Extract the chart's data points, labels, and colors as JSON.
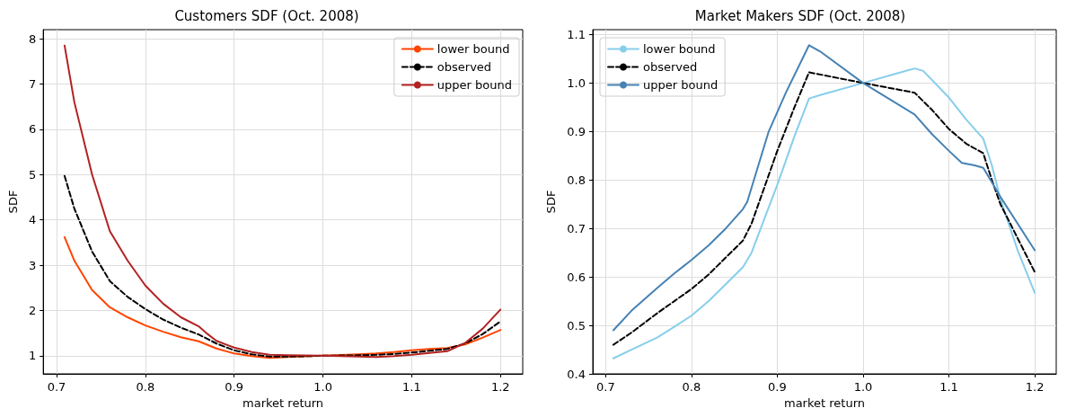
{
  "chart_data": [
    {
      "type": "line",
      "title": "Customers SDF (Oct. 2008)",
      "xlabel": "market return",
      "ylabel": "SDF",
      "grid": true,
      "legend": "top right",
      "marker": "none",
      "xlim": [
        0.685,
        1.225
      ],
      "xticks": [
        0.7,
        0.8,
        0.9,
        {
          "value": 1.0,
          "label": "1.0"
        },
        1.1,
        1.2
      ],
      "ylim": [
        0.6,
        8.2
      ],
      "yticks": [
        1,
        2,
        3,
        4,
        5,
        6,
        7,
        8
      ],
      "series": [
        {
          "name": "lower bound",
          "color": "#ff4500",
          "line_style": "solid",
          "x": [
            0.709,
            0.72,
            0.74,
            0.76,
            0.78,
            0.8,
            0.82,
            0.84,
            0.86,
            0.88,
            0.9,
            0.92,
            0.94,
            0.96,
            1.0,
            1.04,
            1.06,
            1.08,
            1.1,
            1.12,
            1.14,
            1.16,
            1.18,
            1.2
          ],
          "values": [
            3.62,
            3.1,
            2.45,
            2.07,
            1.85,
            1.67,
            1.53,
            1.41,
            1.32,
            1.16,
            1.05,
            0.99,
            0.95,
            0.97,
            1.0,
            1.03,
            1.05,
            1.08,
            1.12,
            1.15,
            1.17,
            1.25,
            1.4,
            1.57
          ]
        },
        {
          "name": "observed",
          "color": "#000000",
          "line_style": "dashed",
          "x": [
            0.709,
            0.72,
            0.74,
            0.76,
            0.78,
            0.8,
            0.82,
            0.84,
            0.86,
            0.88,
            0.9,
            0.92,
            0.94,
            0.96,
            1.0,
            1.04,
            1.06,
            1.08,
            1.1,
            1.12,
            1.14,
            1.16,
            1.18,
            1.2
          ],
          "values": [
            4.97,
            4.25,
            3.3,
            2.65,
            2.3,
            2.03,
            1.8,
            1.62,
            1.47,
            1.27,
            1.12,
            1.03,
            0.98,
            0.98,
            1.0,
            1.01,
            1.02,
            1.04,
            1.07,
            1.11,
            1.15,
            1.27,
            1.48,
            1.76
          ]
        },
        {
          "name": "upper bound",
          "color": "#b22222",
          "line_style": "solid",
          "x": [
            0.709,
            0.72,
            0.74,
            0.76,
            0.78,
            0.8,
            0.82,
            0.84,
            0.86,
            0.87,
            0.88,
            0.9,
            0.92,
            0.94,
            0.96,
            1.0,
            1.04,
            1.06,
            1.08,
            1.1,
            1.12,
            1.14,
            1.16,
            1.18,
            1.2
          ],
          "values": [
            7.85,
            6.6,
            5.0,
            3.75,
            3.1,
            2.55,
            2.15,
            1.85,
            1.65,
            1.48,
            1.33,
            1.18,
            1.08,
            1.02,
            1.01,
            1.0,
            0.98,
            0.97,
            0.99,
            1.02,
            1.06,
            1.1,
            1.28,
            1.6,
            2.02
          ]
        }
      ]
    },
    {
      "type": "line",
      "title": "Market Makers SDF (Oct. 2008)",
      "xlabel": "market return",
      "ylabel": "SDF",
      "grid": true,
      "legend": "top left",
      "marker": "none",
      "xlim": [
        0.685,
        1.225
      ],
      "xticks": [
        0.7,
        0.8,
        0.9,
        {
          "value": 1.0,
          "label": "1.0"
        },
        1.1,
        1.2
      ],
      "ylim": [
        0.4,
        1.11
      ],
      "yticks": [
        0.4,
        0.5,
        0.6,
        0.7,
        0.8,
        0.9,
        {
          "value": 1.0,
          "label": "1.0"
        },
        1.1
      ],
      "series": [
        {
          "name": "lower bound",
          "color": "#87ceeb",
          "line_style": "solid",
          "x": [
            0.709,
            0.73,
            0.76,
            0.78,
            0.8,
            0.82,
            0.84,
            0.86,
            0.87,
            0.9,
            0.92,
            0.937,
            0.95,
            1.0,
            1.04,
            1.06,
            1.07,
            1.1,
            1.12,
            1.14,
            1.15,
            1.16,
            1.18,
            1.2
          ],
          "values": [
            0.432,
            0.45,
            0.475,
            0.497,
            0.52,
            0.55,
            0.585,
            0.62,
            0.65,
            0.79,
            0.89,
            0.968,
            0.975,
            1.0,
            1.02,
            1.03,
            1.025,
            0.97,
            0.925,
            0.885,
            0.83,
            0.76,
            0.655,
            0.567
          ]
        },
        {
          "name": "observed",
          "color": "#000000",
          "line_style": "dashed",
          "x": [
            0.709,
            0.73,
            0.76,
            0.78,
            0.8,
            0.82,
            0.84,
            0.86,
            0.87,
            0.9,
            0.92,
            0.937,
            1.0,
            1.06,
            1.08,
            1.1,
            1.12,
            1.14,
            1.15,
            1.16,
            1.18,
            1.2
          ],
          "values": [
            0.46,
            0.485,
            0.525,
            0.55,
            0.575,
            0.605,
            0.64,
            0.675,
            0.71,
            0.86,
            0.95,
            1.022,
            1.0,
            0.98,
            0.945,
            0.905,
            0.875,
            0.855,
            0.8,
            0.75,
            0.68,
            0.61
          ]
        },
        {
          "name": "upper bound",
          "color": "#4682b4",
          "line_style": "solid",
          "x": [
            0.709,
            0.73,
            0.76,
            0.78,
            0.8,
            0.82,
            0.84,
            0.86,
            0.865,
            0.89,
            0.91,
            0.937,
            0.95,
            1.0,
            1.06,
            1.08,
            1.1,
            1.115,
            1.13,
            1.14,
            1.16,
            1.18,
            1.2
          ],
          "values": [
            0.49,
            0.53,
            0.577,
            0.607,
            0.635,
            0.665,
            0.7,
            0.74,
            0.755,
            0.9,
            0.98,
            1.078,
            1.065,
            1.0,
            0.935,
            0.895,
            0.86,
            0.835,
            0.83,
            0.825,
            0.765,
            0.71,
            0.655
          ]
        }
      ]
    }
  ]
}
